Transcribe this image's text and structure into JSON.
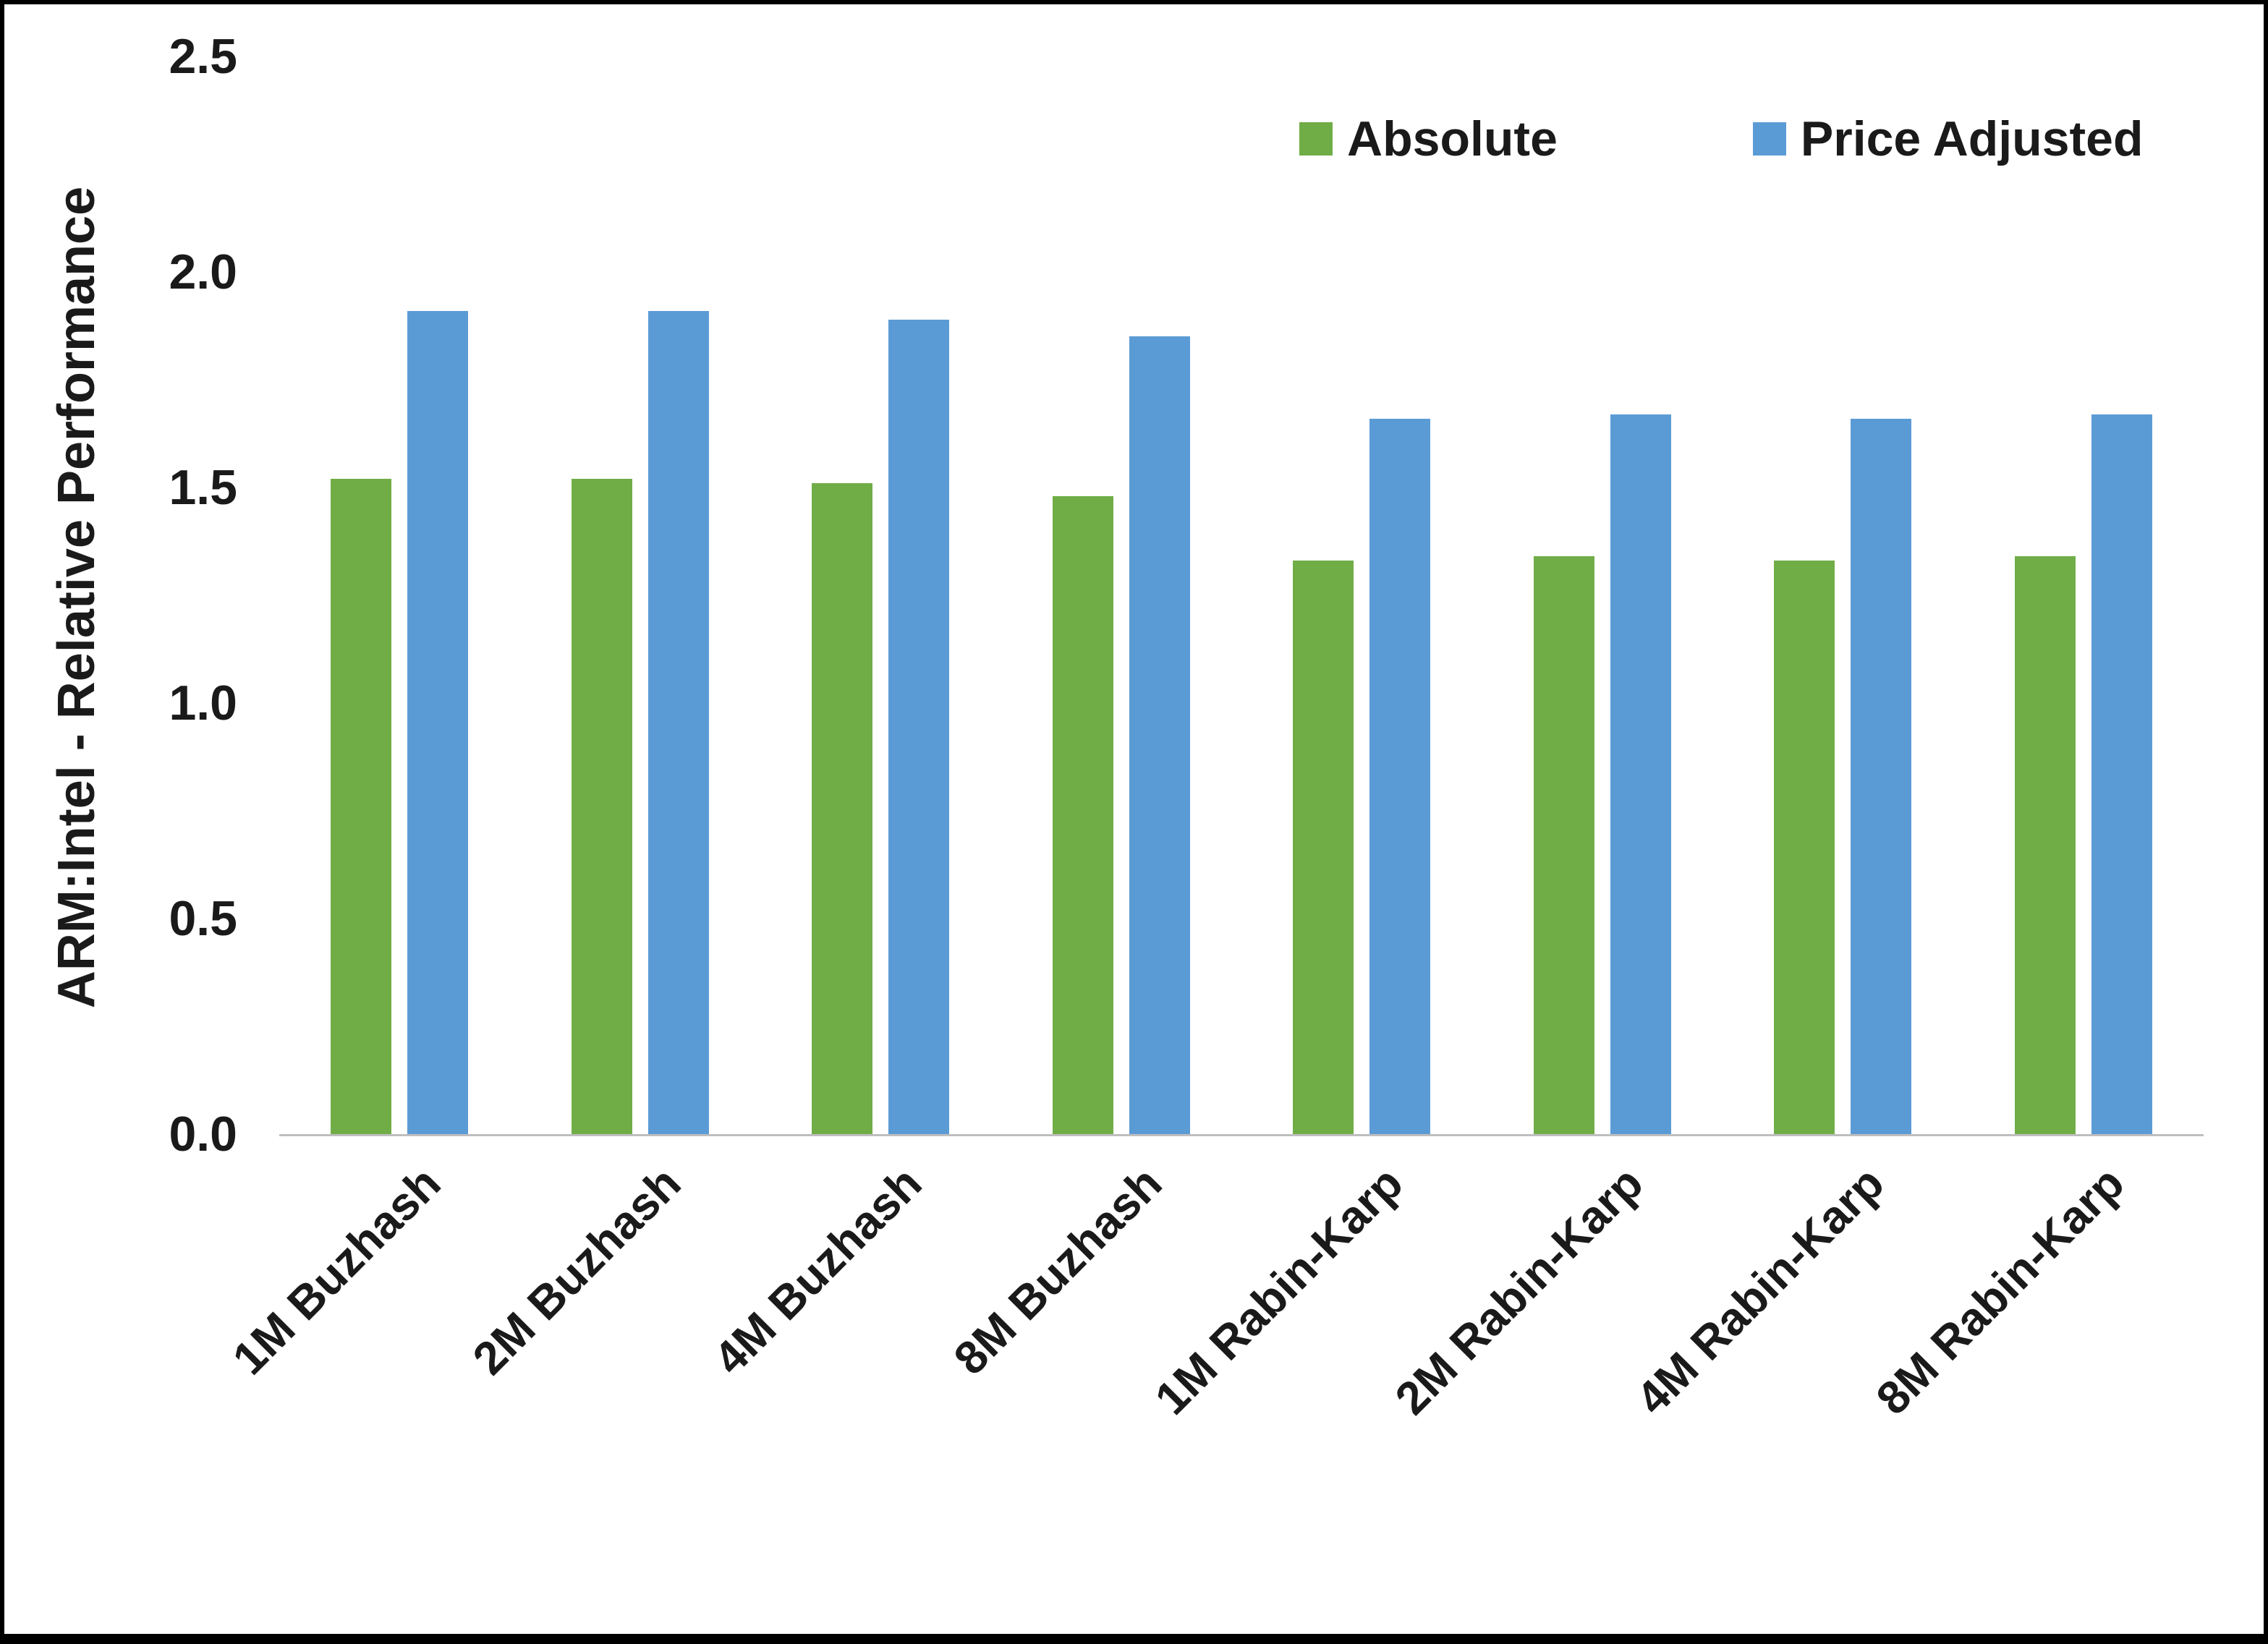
{
  "chart_data": {
    "type": "bar",
    "title": "",
    "xlabel": "",
    "ylabel": "ARM:Intel - Relative Performance",
    "ylim": [
      0,
      2.5
    ],
    "yticks": [
      "0.0",
      "0.5",
      "1.0",
      "1.5",
      "2.0",
      "2.5"
    ],
    "grid": false,
    "legend_position": "top",
    "categories": [
      "1M Buzhash",
      "2M Buzhash",
      "4M Buzhash",
      "8M Buzhash",
      "1M Rabin-Karp",
      "2M Rabin-Karp",
      "4M Rabin-Karp",
      "8M Rabin-Karp"
    ],
    "series": [
      {
        "name": "Absolute",
        "color": "#70AD47",
        "values": [
          1.52,
          1.52,
          1.51,
          1.48,
          1.33,
          1.34,
          1.33,
          1.34
        ]
      },
      {
        "name": "Price Adjusted",
        "color": "#5B9BD5",
        "values": [
          1.91,
          1.91,
          1.89,
          1.85,
          1.66,
          1.67,
          1.66,
          1.67
        ]
      }
    ]
  },
  "colors": {
    "absolute": "#70AD47",
    "price_adjusted": "#5B9BD5",
    "axis_line": "#bfbfbf",
    "text": "#1a1a1a",
    "frame_border": "#000000",
    "background": "#ffffff"
  }
}
